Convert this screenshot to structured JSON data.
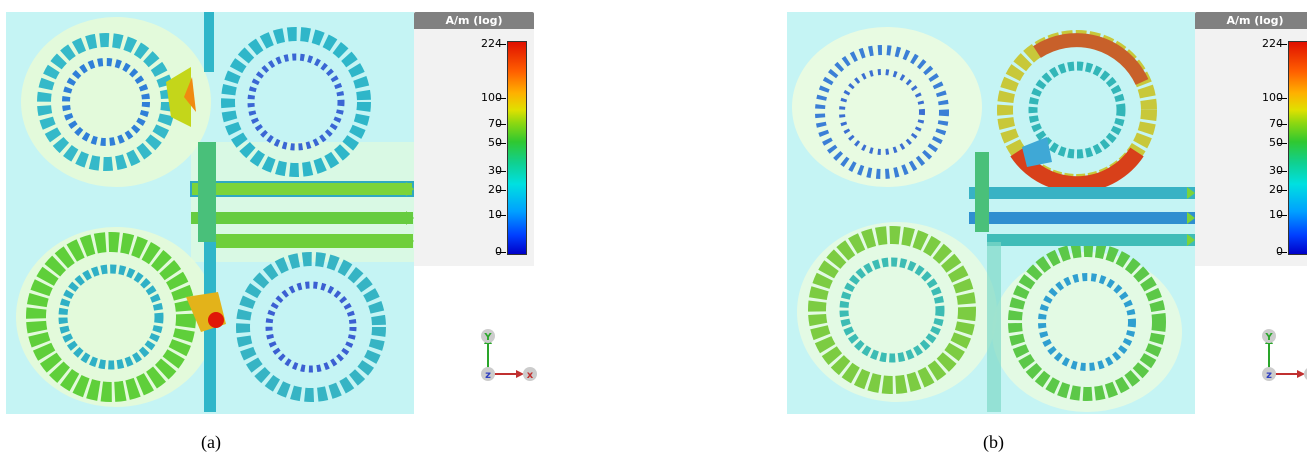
{
  "figures": [
    {
      "id": "a",
      "caption": "(a)",
      "legend": {
        "title": "A/m (log)",
        "ticks": [
          "224",
          "100",
          "70",
          "50",
          "30",
          "20",
          "10",
          "0"
        ],
        "colors": [
          "#0000c8",
          "#00a0ff",
          "#00e0e0",
          "#30c830",
          "#e0e000",
          "#ff6000",
          "#e01000"
        ]
      },
      "axes": {
        "y": "Y",
        "z": "z",
        "x": "x"
      }
    },
    {
      "id": "b",
      "caption": "(b)",
      "legend": {
        "title": "A/m (log)",
        "ticks": [
          "224",
          "100",
          "70",
          "50",
          "30",
          "20",
          "10",
          "0"
        ],
        "colors": [
          "#0000c8",
          "#00a0ff",
          "#00e0e0",
          "#30c830",
          "#e0e000",
          "#ff6000",
          "#e01000"
        ]
      },
      "axes": {
        "y": "Y",
        "z": "z",
        "x": "x"
      }
    }
  ]
}
